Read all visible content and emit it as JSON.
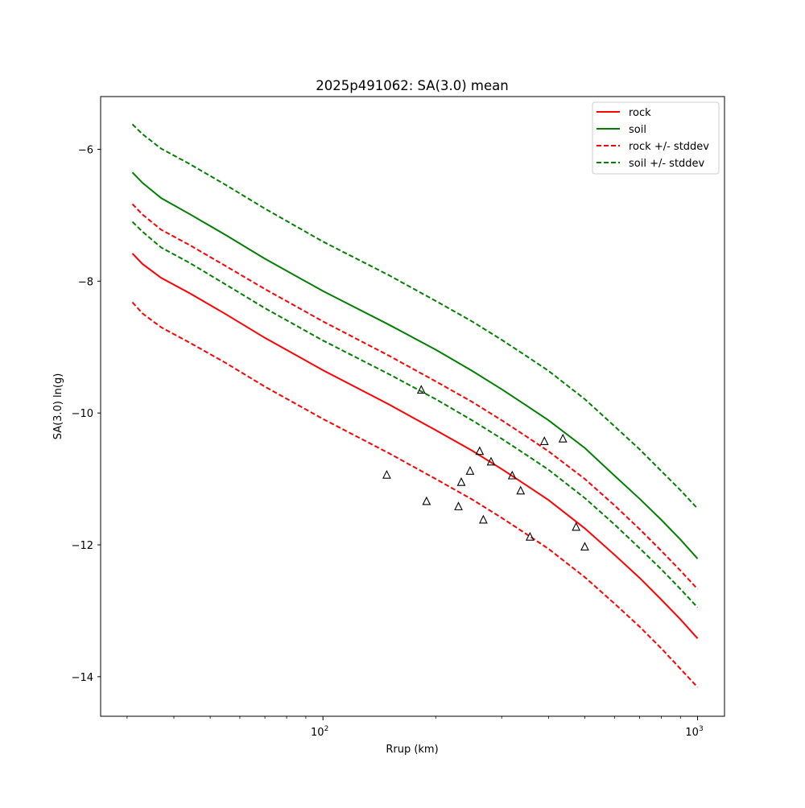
{
  "chart_data": {
    "type": "line",
    "title": "2025p491062: SA(3.0) mean",
    "xlabel": "Rrup (km)",
    "ylabel": "SA(3.0) ln(g)",
    "xscale": "log",
    "xlim": [
      25.5,
      1180
    ],
    "ylim": [
      -14.6,
      -5.2
    ],
    "grid": false,
    "legend_position": "top-right",
    "x_ticks": [
      {
        "value": 100,
        "base": "10",
        "exp": "2"
      },
      {
        "value": 1000,
        "base": "10",
        "exp": "3"
      }
    ],
    "y_ticks": [
      {
        "value": -6,
        "label": "−6"
      },
      {
        "value": -8,
        "label": "−8"
      },
      {
        "value": -10,
        "label": "−10"
      },
      {
        "value": -12,
        "label": "−12"
      },
      {
        "value": -14,
        "label": "−14"
      }
    ],
    "series": [
      {
        "name": "rock",
        "color": "#ff0000",
        "style": "solid",
        "x": [
          31,
          33,
          37,
          44,
          55,
          70,
          100,
          150,
          200,
          250,
          300,
          350,
          400,
          500,
          600,
          700,
          800,
          900,
          1000
        ],
        "y": [
          -7.58,
          -7.74,
          -7.95,
          -8.18,
          -8.5,
          -8.86,
          -9.35,
          -9.87,
          -10.26,
          -10.57,
          -10.85,
          -11.1,
          -11.32,
          -11.75,
          -12.15,
          -12.5,
          -12.83,
          -13.13,
          -13.42
        ]
      },
      {
        "name": "soil",
        "color": "#008000",
        "style": "solid",
        "x": [
          31,
          33,
          37,
          44,
          55,
          70,
          100,
          150,
          200,
          250,
          300,
          350,
          400,
          500,
          600,
          700,
          800,
          900,
          1000
        ],
        "y": [
          -6.35,
          -6.51,
          -6.74,
          -6.98,
          -7.3,
          -7.66,
          -8.15,
          -8.66,
          -9.04,
          -9.36,
          -9.64,
          -9.89,
          -10.11,
          -10.53,
          -10.95,
          -11.3,
          -11.62,
          -11.92,
          -12.21
        ]
      },
      {
        "name": "rock +/- stddev",
        "color": "#ff0000",
        "style": "dashed",
        "x": [
          31,
          33,
          37,
          44,
          55,
          70,
          100,
          150,
          200,
          250,
          300,
          350,
          400,
          500,
          600,
          700,
          800,
          900,
          1000
        ],
        "y": [
          -6.83,
          -6.99,
          -7.22,
          -7.45,
          -7.77,
          -8.12,
          -8.61,
          -9.13,
          -9.52,
          -9.83,
          -10.11,
          -10.36,
          -10.58,
          -11.0,
          -11.4,
          -11.76,
          -12.09,
          -12.39,
          -12.67
        ]
      },
      {
        "name": "",
        "color": "#ff0000",
        "style": "dashed",
        "x": [
          31,
          33,
          37,
          44,
          55,
          70,
          100,
          150,
          200,
          250,
          300,
          350,
          400,
          500,
          600,
          700,
          800,
          900,
          1000
        ],
        "y": [
          -8.32,
          -8.49,
          -8.7,
          -8.93,
          -9.24,
          -9.6,
          -10.09,
          -10.61,
          -11.0,
          -11.31,
          -11.59,
          -11.84,
          -12.06,
          -12.49,
          -12.89,
          -13.24,
          -13.57,
          -13.88,
          -14.16
        ]
      },
      {
        "name": "soil +/- stddev",
        "color": "#008000",
        "style": "dashed",
        "x": [
          31,
          33,
          37,
          44,
          55,
          70,
          100,
          150,
          200,
          250,
          300,
          350,
          400,
          500,
          600,
          700,
          800,
          900,
          1000
        ],
        "y": [
          -5.62,
          -5.77,
          -5.99,
          -6.22,
          -6.54,
          -6.9,
          -7.4,
          -7.91,
          -8.3,
          -8.61,
          -8.89,
          -9.14,
          -9.36,
          -9.79,
          -10.2,
          -10.55,
          -10.88,
          -11.17,
          -11.45
        ]
      },
      {
        "name": "",
        "color": "#008000",
        "style": "dashed",
        "x": [
          31,
          33,
          37,
          44,
          55,
          70,
          100,
          150,
          200,
          250,
          300,
          350,
          400,
          500,
          600,
          700,
          800,
          900,
          1000
        ],
        "y": [
          -7.1,
          -7.25,
          -7.49,
          -7.72,
          -8.05,
          -8.41,
          -8.9,
          -9.41,
          -9.79,
          -10.11,
          -10.39,
          -10.64,
          -10.86,
          -11.29,
          -11.69,
          -12.05,
          -12.37,
          -12.67,
          -12.95
        ]
      }
    ],
    "observations": {
      "marker": "triangle",
      "color": "#000000",
      "x": [
        148,
        183,
        189,
        230,
        234,
        247,
        262,
        268,
        281,
        320,
        337,
        357,
        390,
        437,
        474,
        500
      ],
      "y": [
        -10.94,
        -9.65,
        -11.34,
        -11.42,
        -11.05,
        -10.88,
        -10.58,
        -11.62,
        -10.74,
        -10.95,
        -11.18,
        -11.88,
        -10.43,
        -10.39,
        -11.73,
        -12.03
      ]
    }
  }
}
